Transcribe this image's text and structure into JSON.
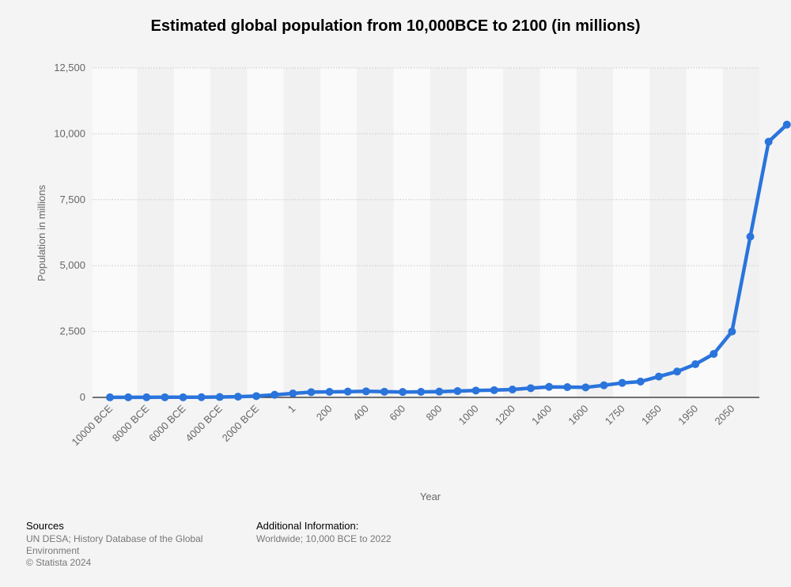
{
  "chart_data": {
    "type": "line",
    "title": "Estimated global population from 10,000BCE to 2100 (in millions)",
    "xlabel": "Year",
    "ylabel": "Population in millions",
    "ylim": [
      0,
      12500
    ],
    "yticks": [
      0,
      2500,
      5000,
      7500,
      10000,
      12500
    ],
    "ytick_labels": [
      "0",
      "2,500",
      "5,000",
      "7,500",
      "10,000",
      "12,500"
    ],
    "xtick_labels": [
      "10000 BCE",
      "8000 BCE",
      "6000 BCE",
      "4000 BCE",
      "2000 BCE",
      "1",
      "200",
      "400",
      "600",
      "800",
      "1000",
      "1200",
      "1400",
      "1600",
      "1750",
      "1850",
      "1950",
      "2050"
    ],
    "grid": true,
    "color": "#2a74dc",
    "series": [
      {
        "values": [
          2,
          3,
          4,
          5,
          5,
          7,
          14,
          27,
          50,
          100,
          150,
          200,
          210,
          220,
          230,
          215,
          205,
          210,
          220,
          240,
          260,
          275,
          300,
          350,
          400,
          390,
          380,
          460,
          550,
          600,
          790,
          980,
          1260,
          1650,
          2500,
          6100,
          9700,
          10350
        ]
      }
    ]
  },
  "footer": {
    "sources_heading": "Sources",
    "sources_text": "UN DESA; History Database of the Global Environment",
    "copyright": "© Statista 2024",
    "additional_heading": "Additional Information:",
    "additional_text": "Worldwide; 10,000 BCE to 2022"
  }
}
